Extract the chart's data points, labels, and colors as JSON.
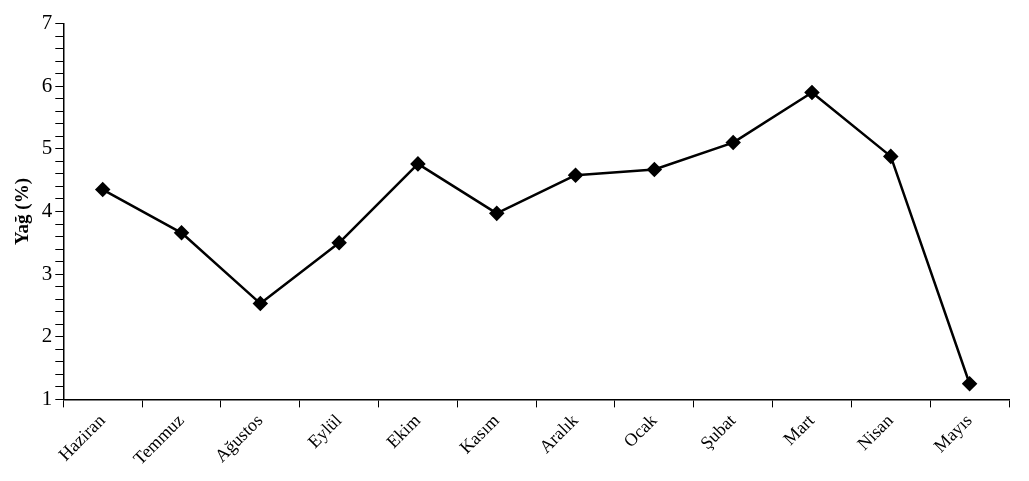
{
  "chart_data": {
    "type": "line",
    "ylabel": "Yağ (%)",
    "categories": [
      "Haziran",
      "Temmuz",
      "Ağustos",
      "Eylül",
      "Ekim",
      "Kasım",
      "Aralık",
      "Ocak",
      "Şubat",
      "Mart",
      "Nisan",
      "Mayıs"
    ],
    "series": [
      {
        "color": "#000000",
        "values": [
          4.35,
          3.66,
          2.53,
          3.5,
          4.76,
          3.97,
          4.58,
          4.67,
          5.1,
          5.9,
          4.88,
          1.25
        ]
      }
    ],
    "ylim": [
      1,
      7
    ],
    "yticks": [
      1,
      {
        "value": 1.2,
        "label": null
      },
      {
        "value": 1.4,
        "label": null
      },
      {
        "value": 1.6,
        "label": null
      },
      {
        "value": 1.8,
        "label": null
      },
      2,
      {
        "value": 2.2,
        "label": null
      },
      {
        "value": 2.4,
        "label": null
      },
      {
        "value": 2.6,
        "label": null
      },
      {
        "value": 2.8,
        "label": null
      },
      3,
      {
        "value": 3.2,
        "label": null
      },
      {
        "value": 3.4,
        "label": null
      },
      {
        "value": 3.6,
        "label": null
      },
      {
        "value": 3.8,
        "label": null
      },
      4,
      {
        "value": 4.2,
        "label": null
      },
      {
        "value": 4.4,
        "label": null
      },
      {
        "value": 4.6,
        "label": null
      },
      {
        "value": 4.8,
        "label": null
      },
      5,
      {
        "value": 5.2,
        "label": null
      },
      {
        "value": 5.4,
        "label": null
      },
      {
        "value": 5.6,
        "label": null
      },
      {
        "value": 5.8,
        "label": null
      },
      6,
      {
        "value": 6.2,
        "label": null
      },
      {
        "value": 6.4,
        "label": null
      },
      {
        "value": 6.6,
        "label": null
      },
      {
        "value": 6.8,
        "label": null
      },
      7
    ],
    "grid": false,
    "legend": false,
    "marker": "diamond",
    "line_style": "solid"
  }
}
